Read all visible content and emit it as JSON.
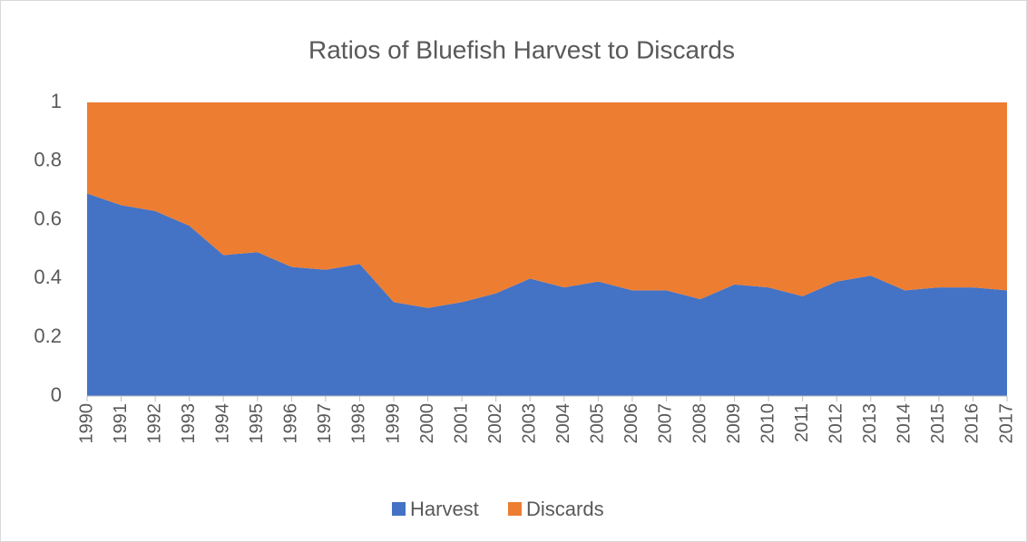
{
  "chart_data": {
    "type": "stacked-area",
    "title": "Ratios of Bluefish Harvest to Discards",
    "categories": [
      "1990",
      "1991",
      "1992",
      "1993",
      "1994",
      "1995",
      "1996",
      "1997",
      "1998",
      "1999",
      "2000",
      "2001",
      "2002",
      "2003",
      "2004",
      "2005",
      "2006",
      "2007",
      "2008",
      "2009",
      "2010",
      "2011",
      "2012",
      "2013",
      "2014",
      "2015",
      "2016",
      "2017"
    ],
    "series": [
      {
        "name": "Harvest",
        "color": "#4472c4",
        "values": [
          0.69,
          0.65,
          0.63,
          0.58,
          0.48,
          0.49,
          0.44,
          0.43,
          0.45,
          0.32,
          0.3,
          0.32,
          0.35,
          0.4,
          0.37,
          0.39,
          0.36,
          0.36,
          0.33,
          0.38,
          0.37,
          0.34,
          0.39,
          0.41,
          0.36,
          0.37,
          0.37,
          0.36
        ]
      },
      {
        "name": "Discards",
        "color": "#ed7d31",
        "values": [
          0.31,
          0.35,
          0.37,
          0.42,
          0.52,
          0.51,
          0.56,
          0.57,
          0.55,
          0.68,
          0.7,
          0.68,
          0.65,
          0.6,
          0.63,
          0.61,
          0.64,
          0.64,
          0.67,
          0.62,
          0.63,
          0.66,
          0.61,
          0.59,
          0.64,
          0.63,
          0.63,
          0.64
        ]
      }
    ],
    "ylim": [
      0,
      1
    ],
    "yticks": [
      0,
      0.2,
      0.4,
      0.6,
      0.8,
      1
    ],
    "grid": false,
    "legend": "bottom"
  }
}
